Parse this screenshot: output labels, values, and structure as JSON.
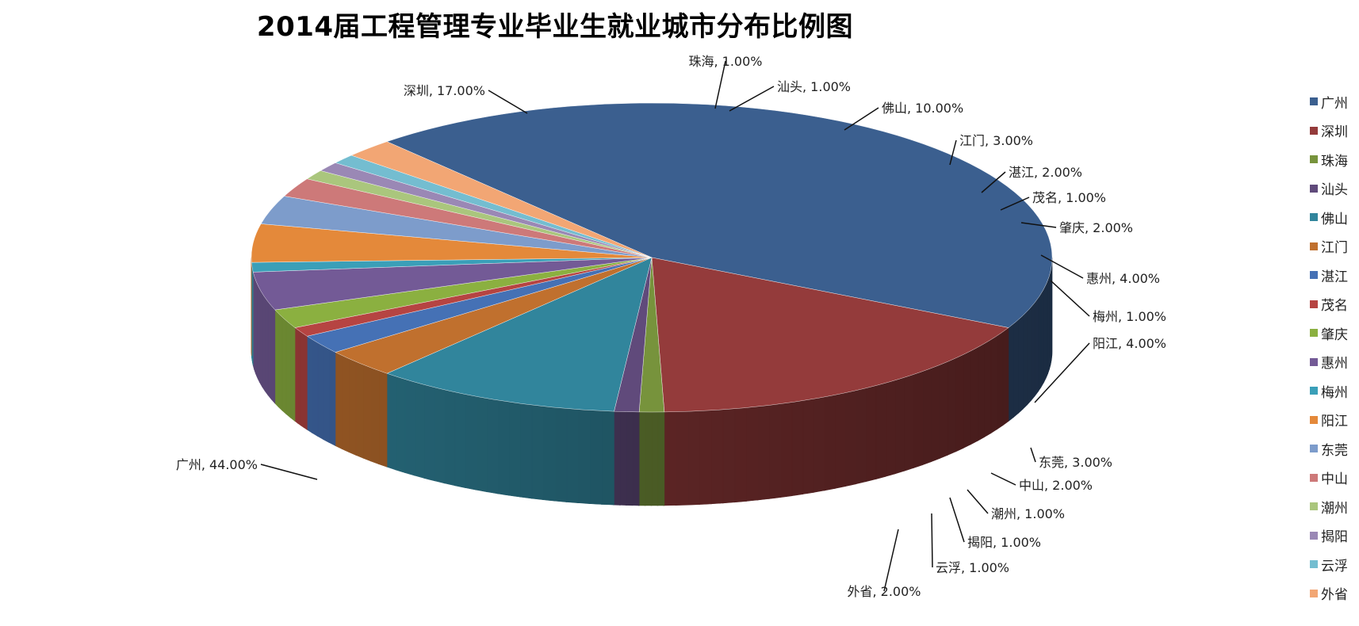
{
  "chart_data": {
    "type": "pie",
    "title": "2014届工程管理专业毕业生就业城市分布比例图",
    "legend_position": "right",
    "slices": [
      {
        "name": "广州",
        "value": 44,
        "label": "44.00%",
        "color": "#3B5F8F"
      },
      {
        "name": "深圳",
        "value": 17,
        "label": "17.00%",
        "color": "#943B3B"
      },
      {
        "name": "珠海",
        "value": 1,
        "label": "1.00%",
        "color": "#77933C"
      },
      {
        "name": "汕头",
        "value": 1,
        "label": "1.00%",
        "color": "#604A7B"
      },
      {
        "name": "佛山",
        "value": 10,
        "label": "10.00%",
        "color": "#31859C"
      },
      {
        "name": "江门",
        "value": 3,
        "label": "3.00%",
        "color": "#C0702E"
      },
      {
        "name": "湛江",
        "value": 2,
        "label": "2.00%",
        "color": "#4571B5"
      },
      {
        "name": "茂名",
        "value": 1,
        "label": "1.00%",
        "color": "#B64442"
      },
      {
        "name": "肇庆",
        "value": 2,
        "label": "2.00%",
        "color": "#8BB040"
      },
      {
        "name": "惠州",
        "value": 4,
        "label": "4.00%",
        "color": "#735A96"
      },
      {
        "name": "梅州",
        "value": 1,
        "label": "1.00%",
        "color": "#3A9FB8"
      },
      {
        "name": "阳江",
        "value": 4,
        "label": "4.00%",
        "color": "#E4893A"
      },
      {
        "name": "东莞",
        "value": 3,
        "label": "3.00%",
        "color": "#7D9CCB"
      },
      {
        "name": "中山",
        "value": 2,
        "label": "2.00%",
        "color": "#CD7979"
      },
      {
        "name": "潮州",
        "value": 1,
        "label": "1.00%",
        "color": "#AAC67D"
      },
      {
        "name": "揭阳",
        "value": 1,
        "label": "1.00%",
        "color": "#9A88B5"
      },
      {
        "name": "云浮",
        "value": 1,
        "label": "1.00%",
        "color": "#74BDD0"
      },
      {
        "name": "外省",
        "value": 2,
        "label": "2.00%",
        "color": "#F2A674"
      }
    ]
  }
}
